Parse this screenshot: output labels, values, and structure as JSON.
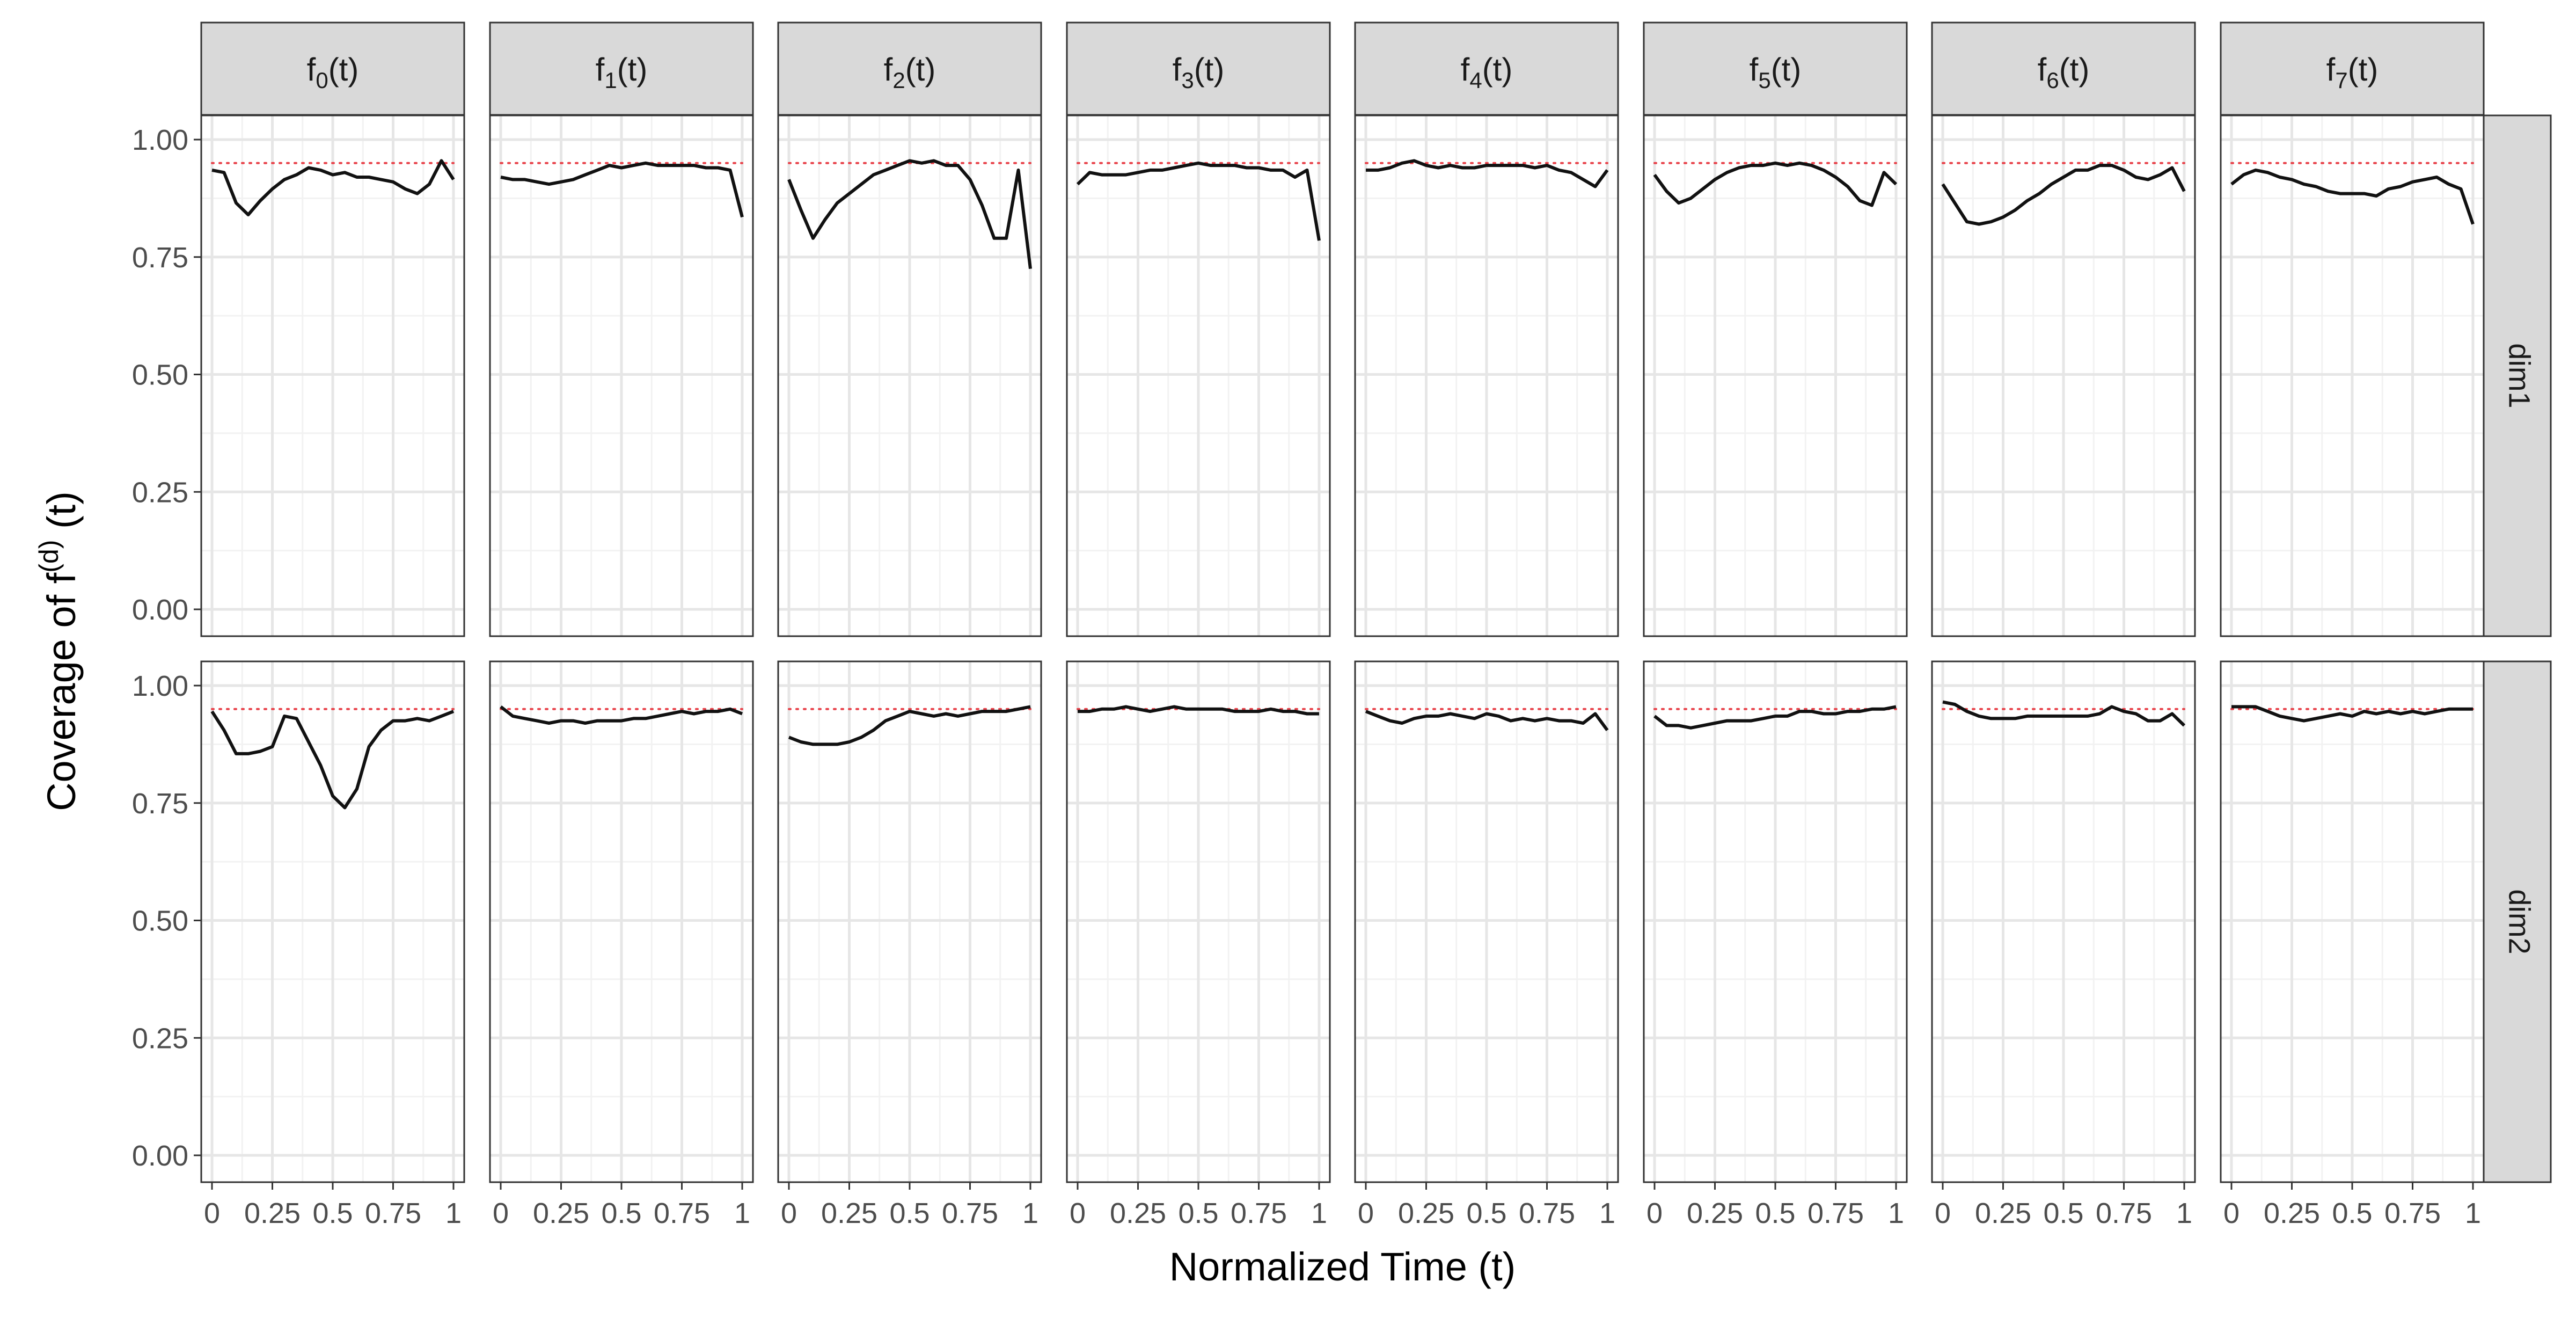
{
  "chart_data": {
    "type": "line",
    "layout": "facet-grid",
    "xlabel": "Normalized Time (t)",
    "ylabel": {
      "prefix": "Coverage of  f",
      "superscript": "(d)",
      "suffix": "  (t)"
    },
    "xlim": [
      0,
      1
    ],
    "ylim": [
      0,
      1
    ],
    "x_ticks": [
      0,
      0.25,
      0.5,
      0.75,
      1
    ],
    "x_tick_labels": [
      "0",
      "0.25",
      "0.5",
      "0.75",
      "1"
    ],
    "y_ticks": [
      0,
      0.25,
      0.5,
      0.75,
      1
    ],
    "y_tick_labels": [
      "0.00",
      "0.25",
      "0.50",
      "0.75",
      "1.00"
    ],
    "grid": true,
    "reference_line": {
      "y": 0.95,
      "color": "#e8424a",
      "style": "dotted"
    },
    "line_color": "#111111",
    "columns": [
      {
        "base": "f",
        "sub": "0",
        "tail": "(t)"
      },
      {
        "base": "f",
        "sub": "1",
        "tail": "(t)"
      },
      {
        "base": "f",
        "sub": "2",
        "tail": "(t)"
      },
      {
        "base": "f",
        "sub": "3",
        "tail": "(t)"
      },
      {
        "base": "f",
        "sub": "4",
        "tail": "(t)"
      },
      {
        "base": "f",
        "sub": "5",
        "tail": "(t)"
      },
      {
        "base": "f",
        "sub": "6",
        "tail": "(t)"
      },
      {
        "base": "f",
        "sub": "7",
        "tail": "(t)"
      }
    ],
    "rows": [
      "dim1",
      "dim2"
    ],
    "x": [
      0,
      0.05,
      0.1,
      0.15,
      0.2,
      0.25,
      0.3,
      0.35,
      0.4,
      0.45,
      0.5,
      0.55,
      0.6,
      0.65,
      0.7,
      0.75,
      0.8,
      0.85,
      0.9,
      0.95,
      1
    ],
    "panels": [
      {
        "row": "dim1",
        "col": 0,
        "values": [
          0.935,
          0.93,
          0.865,
          0.84,
          0.87,
          0.895,
          0.915,
          0.925,
          0.94,
          0.935,
          0.925,
          0.93,
          0.92,
          0.92,
          0.915,
          0.91,
          0.895,
          0.885,
          0.905,
          0.955,
          0.915
        ]
      },
      {
        "row": "dim1",
        "col": 1,
        "values": [
          0.92,
          0.915,
          0.915,
          0.91,
          0.905,
          0.91,
          0.915,
          0.925,
          0.935,
          0.945,
          0.94,
          0.945,
          0.95,
          0.945,
          0.945,
          0.945,
          0.945,
          0.94,
          0.94,
          0.935,
          0.835
        ]
      },
      {
        "row": "dim1",
        "col": 2,
        "values": [
          0.915,
          0.85,
          0.79,
          0.83,
          0.865,
          0.885,
          0.905,
          0.925,
          0.935,
          0.945,
          0.955,
          0.95,
          0.955,
          0.945,
          0.945,
          0.915,
          0.86,
          0.79,
          0.79,
          0.935,
          0.725
        ]
      },
      {
        "row": "dim1",
        "col": 3,
        "values": [
          0.905,
          0.93,
          0.925,
          0.925,
          0.925,
          0.93,
          0.935,
          0.935,
          0.94,
          0.945,
          0.95,
          0.945,
          0.945,
          0.945,
          0.94,
          0.94,
          0.935,
          0.935,
          0.92,
          0.935,
          0.785
        ]
      },
      {
        "row": "dim1",
        "col": 4,
        "values": [
          0.935,
          0.935,
          0.94,
          0.95,
          0.955,
          0.945,
          0.94,
          0.945,
          0.94,
          0.94,
          0.945,
          0.945,
          0.945,
          0.945,
          0.94,
          0.945,
          0.935,
          0.93,
          0.915,
          0.9,
          0.935
        ]
      },
      {
        "row": "dim1",
        "col": 5,
        "values": [
          0.925,
          0.89,
          0.865,
          0.875,
          0.895,
          0.915,
          0.93,
          0.94,
          0.945,
          0.945,
          0.95,
          0.945,
          0.95,
          0.945,
          0.935,
          0.92,
          0.9,
          0.87,
          0.86,
          0.93,
          0.905
        ]
      },
      {
        "row": "dim1",
        "col": 6,
        "values": [
          0.905,
          0.865,
          0.825,
          0.82,
          0.825,
          0.835,
          0.85,
          0.87,
          0.885,
          0.905,
          0.92,
          0.935,
          0.935,
          0.945,
          0.945,
          0.935,
          0.92,
          0.915,
          0.925,
          0.94,
          0.89
        ]
      },
      {
        "row": "dim1",
        "col": 7,
        "values": [
          0.905,
          0.925,
          0.935,
          0.93,
          0.92,
          0.915,
          0.905,
          0.9,
          0.89,
          0.885,
          0.885,
          0.885,
          0.88,
          0.895,
          0.9,
          0.91,
          0.915,
          0.92,
          0.905,
          0.895,
          0.82
        ]
      },
      {
        "row": "dim2",
        "col": 0,
        "values": [
          0.945,
          0.905,
          0.855,
          0.855,
          0.86,
          0.87,
          0.935,
          0.93,
          0.88,
          0.83,
          0.765,
          0.74,
          0.78,
          0.87,
          0.905,
          0.925,
          0.925,
          0.93,
          0.925,
          0.935,
          0.945
        ]
      },
      {
        "row": "dim2",
        "col": 1,
        "values": [
          0.955,
          0.935,
          0.93,
          0.925,
          0.92,
          0.925,
          0.925,
          0.92,
          0.925,
          0.925,
          0.925,
          0.93,
          0.93,
          0.935,
          0.94,
          0.945,
          0.94,
          0.945,
          0.945,
          0.95,
          0.94
        ]
      },
      {
        "row": "dim2",
        "col": 2,
        "values": [
          0.89,
          0.88,
          0.875,
          0.875,
          0.875,
          0.88,
          0.89,
          0.905,
          0.925,
          0.935,
          0.945,
          0.94,
          0.935,
          0.94,
          0.935,
          0.94,
          0.945,
          0.945,
          0.945,
          0.95,
          0.955
        ]
      },
      {
        "row": "dim2",
        "col": 3,
        "values": [
          0.945,
          0.945,
          0.95,
          0.95,
          0.955,
          0.95,
          0.945,
          0.95,
          0.955,
          0.95,
          0.95,
          0.95,
          0.95,
          0.945,
          0.945,
          0.945,
          0.95,
          0.945,
          0.945,
          0.94,
          0.94
        ]
      },
      {
        "row": "dim2",
        "col": 4,
        "values": [
          0.945,
          0.935,
          0.925,
          0.92,
          0.93,
          0.935,
          0.935,
          0.94,
          0.935,
          0.93,
          0.94,
          0.935,
          0.925,
          0.93,
          0.925,
          0.93,
          0.925,
          0.925,
          0.92,
          0.94,
          0.905
        ]
      },
      {
        "row": "dim2",
        "col": 5,
        "values": [
          0.935,
          0.915,
          0.915,
          0.91,
          0.915,
          0.92,
          0.925,
          0.925,
          0.925,
          0.93,
          0.935,
          0.935,
          0.945,
          0.945,
          0.94,
          0.94,
          0.945,
          0.945,
          0.95,
          0.95,
          0.955
        ]
      },
      {
        "row": "dim2",
        "col": 6,
        "values": [
          0.965,
          0.96,
          0.945,
          0.935,
          0.93,
          0.93,
          0.93,
          0.935,
          0.935,
          0.935,
          0.935,
          0.935,
          0.935,
          0.94,
          0.955,
          0.945,
          0.94,
          0.925,
          0.925,
          0.94,
          0.915
        ]
      },
      {
        "row": "dim2",
        "col": 7,
        "values": [
          0.955,
          0.955,
          0.955,
          0.945,
          0.935,
          0.93,
          0.925,
          0.93,
          0.935,
          0.94,
          0.935,
          0.945,
          0.94,
          0.945,
          0.94,
          0.945,
          0.94,
          0.945,
          0.95,
          0.95,
          0.95
        ]
      }
    ]
  }
}
